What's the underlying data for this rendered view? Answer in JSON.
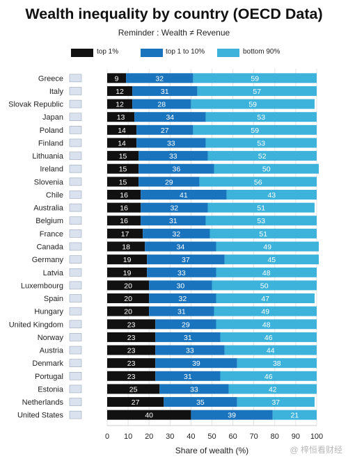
{
  "title": "Wealth inequality by country (OECD Data)",
  "subtitle": "Reminder : Wealth ≠ Revenue",
  "legend": [
    {
      "label": "top 1%",
      "color": "#111111"
    },
    {
      "label": "top 1 to 10%",
      "color": "#1a74bd"
    },
    {
      "label": "bottom 90%",
      "color": "#3db3dc"
    }
  ],
  "watermark": "@ 梓恒看财经",
  "chart_data": {
    "type": "bar",
    "orientation": "horizontal",
    "stacked": true,
    "title": "Wealth inequality by country (OECD Data)",
    "subtitle": "Reminder : Wealth ≠ Revenue",
    "xlabel": "Share of wealth (%)",
    "xlim": [
      0,
      100
    ],
    "xticks": [
      "0",
      "10",
      "20",
      "30",
      "40",
      "50",
      "60",
      "70",
      "80",
      "90",
      "100"
    ],
    "legend_position": "top",
    "categories": [
      "Greece",
      "Italy",
      "Slovak Republic",
      "Japan",
      "Poland",
      "Finland",
      "Lithuania",
      "Ireland",
      "Slovenia",
      "Chile",
      "Australia",
      "Belgium",
      "France",
      "Canada",
      "Germany",
      "Latvia",
      "Luxembourg",
      "Spain",
      "Hungary",
      "United Kingdom",
      "Norway",
      "Austria",
      "Denmark",
      "Portugal",
      "Estonia",
      "Netherlands",
      "United States"
    ],
    "series": [
      {
        "name": "top 1%",
        "color": "#111111",
        "values": [
          9,
          12,
          12,
          13,
          14,
          14,
          15,
          15,
          15,
          16,
          16,
          16,
          17,
          18,
          19,
          19,
          20,
          20,
          20,
          23,
          23,
          23,
          23,
          23,
          25,
          27,
          40
        ]
      },
      {
        "name": "top 1 to 10%",
        "color": "#1a74bd",
        "values": [
          32,
          31,
          28,
          34,
          27,
          33,
          33,
          36,
          29,
          41,
          32,
          31,
          32,
          34,
          37,
          33,
          30,
          32,
          31,
          29,
          31,
          33,
          39,
          31,
          33,
          35,
          39
        ]
      },
      {
        "name": "bottom 90%",
        "color": "#3db3dc",
        "values": [
          59,
          57,
          59,
          53,
          59,
          53,
          52,
          50,
          56,
          43,
          51,
          53,
          51,
          49,
          45,
          48,
          50,
          47,
          49,
          48,
          46,
          44,
          38,
          46,
          42,
          37,
          21
        ]
      }
    ]
  }
}
